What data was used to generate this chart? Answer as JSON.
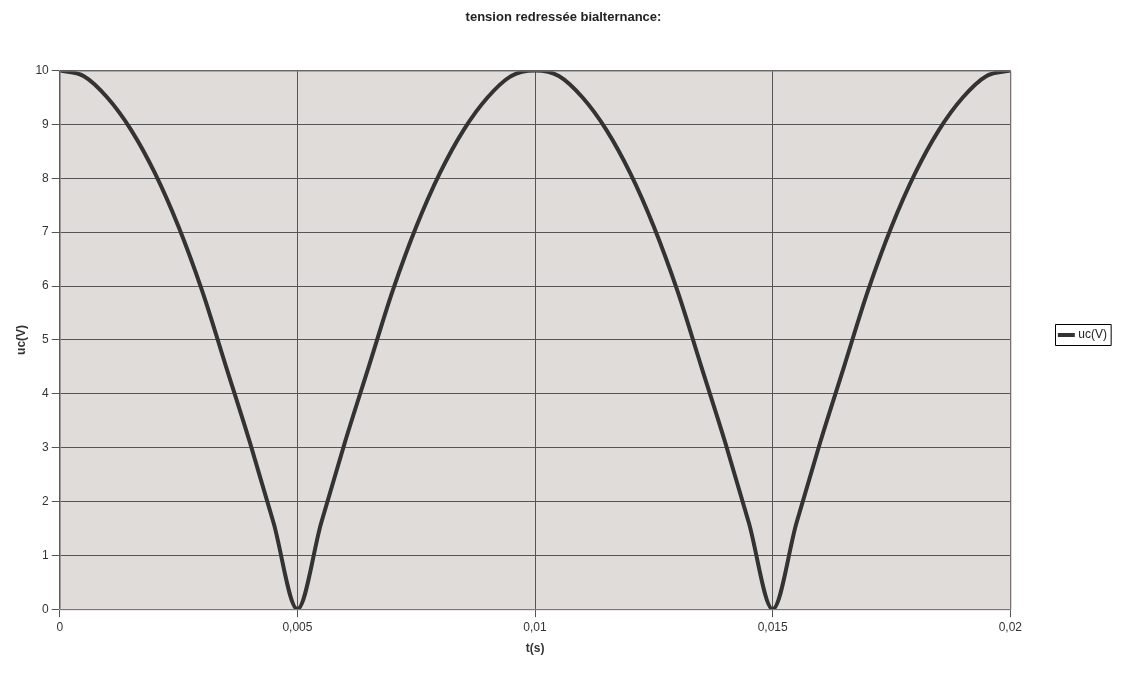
{
  "chart_data": {
    "type": "line",
    "title": "tension redressée bialternance:",
    "xlabel": "t(s)",
    "ylabel": "uc(V)",
    "x": [
      0,
      0.0005,
      0.001,
      0.0015,
      0.002,
      0.0025,
      0.003,
      0.0035,
      0.004,
      0.0045,
      0.005,
      0.0055,
      0.006,
      0.0065,
      0.007,
      0.0075,
      0.008,
      0.0085,
      0.009,
      0.0095,
      0.01,
      0.0105,
      0.011,
      0.0115,
      0.012,
      0.0125,
      0.013,
      0.0135,
      0.014,
      0.0145,
      0.015,
      0.0155,
      0.016,
      0.0165,
      0.017,
      0.0175,
      0.018,
      0.0185,
      0.019,
      0.0195,
      0.02
    ],
    "series": [
      {
        "name": "uc(V)",
        "color": "#333333",
        "values": [
          10,
          9.9,
          9.5,
          8.9,
          8.1,
          7.1,
          5.9,
          4.5,
          3.1,
          1.6,
          0,
          1.6,
          3.1,
          4.5,
          5.9,
          7.1,
          8.1,
          8.9,
          9.5,
          9.9,
          10,
          9.9,
          9.5,
          8.9,
          8.1,
          7.1,
          5.9,
          4.5,
          3.1,
          1.6,
          0,
          1.6,
          3.1,
          4.5,
          5.9,
          7.1,
          8.1,
          8.9,
          9.5,
          9.9,
          10
        ]
      }
    ],
    "xlim": [
      0,
      0.02
    ],
    "xticks": [
      0,
      {
        "value": 0.005,
        "label": "0,005"
      },
      {
        "value": 0.01,
        "label": "0,01"
      },
      {
        "value": 0.015,
        "label": "0,015"
      },
      {
        "value": 0.02,
        "label": "0,02"
      }
    ],
    "ylim": [
      0,
      10
    ],
    "yticks": [
      0,
      1,
      2,
      3,
      4,
      5,
      6,
      7,
      8,
      9,
      10
    ],
    "grid": true,
    "legend": "right",
    "marker": "none",
    "line_style": "solid"
  }
}
